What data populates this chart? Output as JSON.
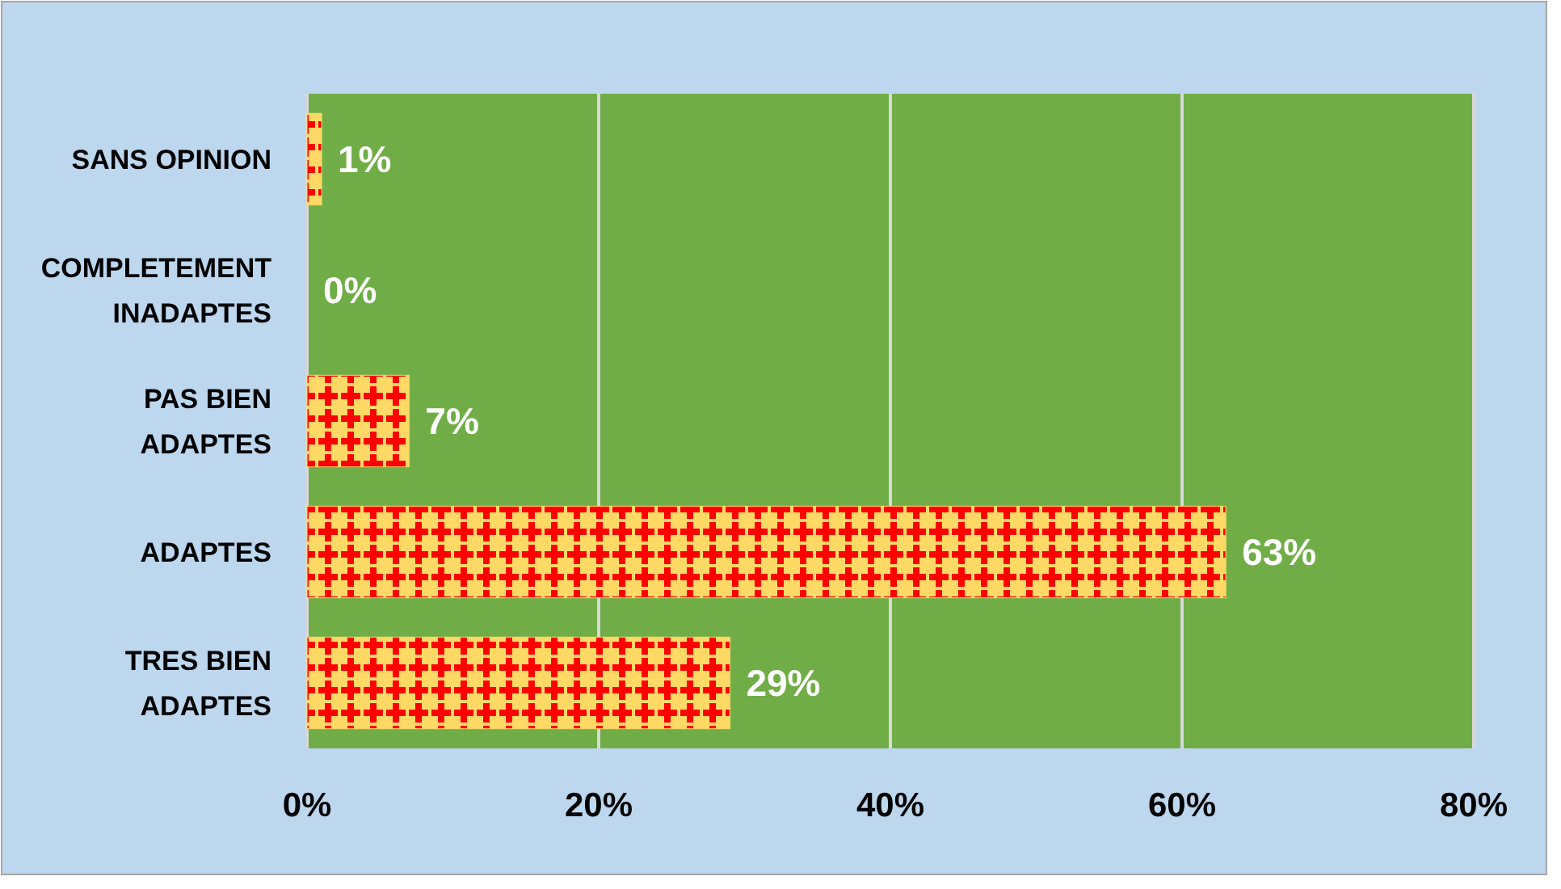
{
  "chart_data": {
    "type": "bar",
    "orientation": "horizontal",
    "categories": [
      "SANS OPINION",
      "COMPLETEMENT INADAPTES",
      "PAS BIEN ADAPTES",
      "ADAPTES",
      "TRES BIEN ADAPTES"
    ],
    "values": [
      1,
      0,
      7,
      63,
      29
    ],
    "value_labels": [
      "1%",
      "0%",
      "7%",
      "63%",
      "29%"
    ],
    "color": "#ffd966",
    "xlim": [
      0,
      80
    ],
    "xticks": [
      {
        "value": 0,
        "label": "0%"
      },
      {
        "value": 20,
        "label": "20%"
      },
      {
        "value": 40,
        "label": "40%"
      },
      {
        "value": 60,
        "label": "60%"
      },
      {
        "value": 80,
        "label": "80%"
      }
    ],
    "grid": "x"
  }
}
